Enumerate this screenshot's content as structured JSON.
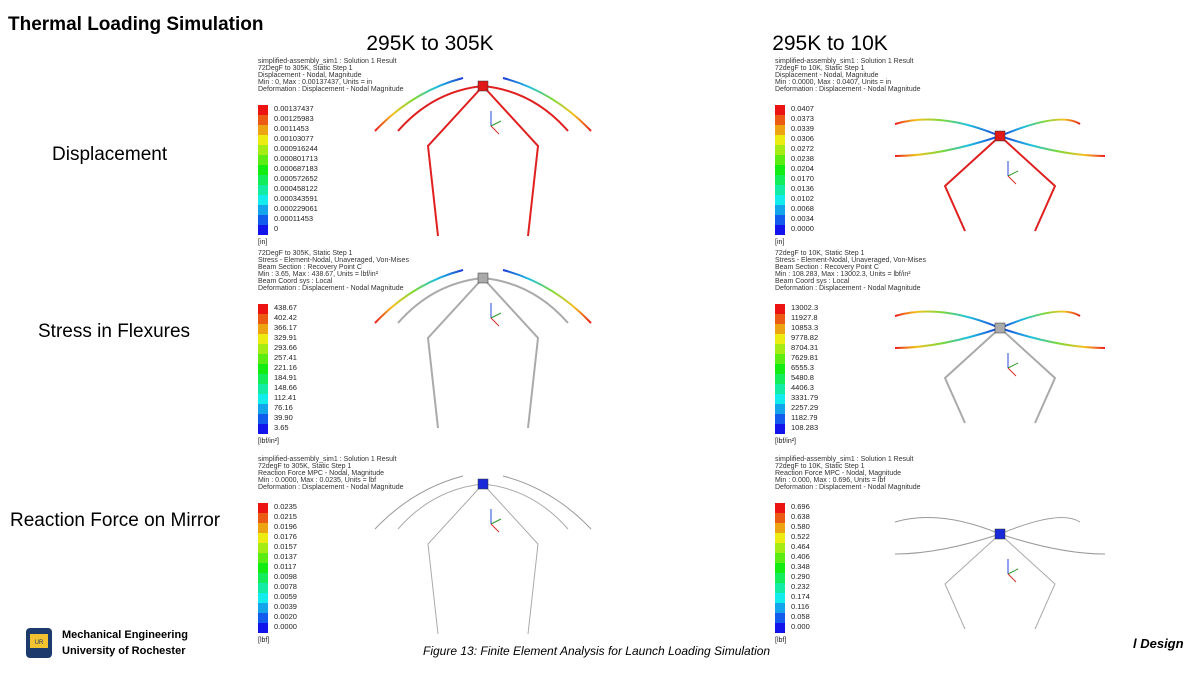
{
  "title": "Thermal Loading Simulation",
  "columns": [
    "295K to 305K",
    "295K to 10K"
  ],
  "rows": [
    "Displacement",
    "Stress in Flexures",
    "Reaction Force on Mirror"
  ],
  "panels": [
    {
      "header": [
        "simplified-assembly_sim1 : Solution 1 Result",
        "72DegF to 305K, Static Step 1",
        "Displacement - Nodal, Magnitude",
        "Min : 0, Max : 0.00137437, Units = in",
        "Deformation : Displacement - Nodal Magnitude"
      ],
      "legend": [
        "0.00137437",
        "0.00125983",
        "0.0011453",
        "0.00103077",
        "0.000916244",
        "0.000801713",
        "0.000687183",
        "0.000572652",
        "0.000458122",
        "0.000343591",
        "0.000229061",
        "0.00011453",
        "0"
      ],
      "unit": "[in]"
    },
    {
      "header": [
        "simplified-assembly_sim1 : Solution 1 Result",
        "72degF to 10K, Static Step 1",
        "Displacement - Nodal, Magnitude",
        "Min : 0.0000, Max : 0.0407, Units = in",
        "Deformation : Displacement - Nodal Magnitude"
      ],
      "legend": [
        "0.0407",
        "0.0373",
        "0.0339",
        "0.0306",
        "0.0272",
        "0.0238",
        "0.0204",
        "0.0170",
        "0.0136",
        "0.0102",
        "0.0068",
        "0.0034",
        "0.0000"
      ],
      "unit": "[in]"
    },
    {
      "header": [
        "72DegF to 305K, Static Step 1",
        "Stress - Element-Nodal, Unaveraged, Von-Mises",
        "Beam Section : Recovery Point C",
        "Min : 3.65, Max : 438.67, Units = lbf/in²",
        "Beam Coord sys : Local",
        "Deformation : Displacement - Nodal Magnitude"
      ],
      "legend": [
        "438.67",
        "402.42",
        "366.17",
        "329.91",
        "293.66",
        "257.41",
        "221.16",
        "184.91",
        "148.66",
        "112.41",
        "76.16",
        "39.90",
        "3.65"
      ],
      "unit": "[lbf/in²]"
    },
    {
      "header": [
        "72degF to 10K, Static Step 1",
        "Stress - Element-Nodal, Unaveraged, Von-Mises",
        "Beam Section : Recovery Point C",
        "Min : 108.283, Max : 13002.3, Units = lbf/in²",
        "Beam Coord sys : Local",
        "Deformation : Displacement - Nodal Magnitude"
      ],
      "legend": [
        "13002.3",
        "11927.8",
        "10853.3",
        "9778.82",
        "8704.31",
        "7629.81",
        "6555.3",
        "5480.8",
        "4406.3",
        "3331.79",
        "2257.29",
        "1182.79",
        "108.283"
      ],
      "unit": "[lbf/in²]"
    },
    {
      "header": [
        "simplified-assembly_sim1 : Solution 1 Result",
        "72degF to 305K, Static Step 1",
        "Reaction Force MPC - Nodal, Magnitude",
        "Min : 0.0000, Max : 0.0235, Units = lbf",
        "Deformation : Displacement - Nodal Magnitude"
      ],
      "legend": [
        "0.0235",
        "0.0215",
        "0.0196",
        "0.0176",
        "0.0157",
        "0.0137",
        "0.0117",
        "0.0098",
        "0.0078",
        "0.0059",
        "0.0039",
        "0.0020",
        "0.0000"
      ],
      "unit": "[lbf]"
    },
    {
      "header": [
        "simplified-assembly_sim1 : Solution 1 Result",
        "72degF to 10K, Static Step 1",
        "Reaction Force MPC - Nodal, Magnitude",
        "Min : 0.000, Max : 0.696, Units = lbf",
        "Deformation : Displacement - Nodal Magnitude"
      ],
      "legend": [
        "0.696",
        "0.638",
        "0.580",
        "0.522",
        "0.464",
        "0.406",
        "0.348",
        "0.290",
        "0.232",
        "0.174",
        "0.116",
        "0.058",
        "0.000"
      ],
      "unit": "[lbf]"
    }
  ],
  "footer": {
    "department": "Mechanical Engineering",
    "university": "University of Rochester",
    "caption": "Figure 13: Finite Element Analysis for Launch Loading Simulation",
    "edge_text": "l Design"
  }
}
